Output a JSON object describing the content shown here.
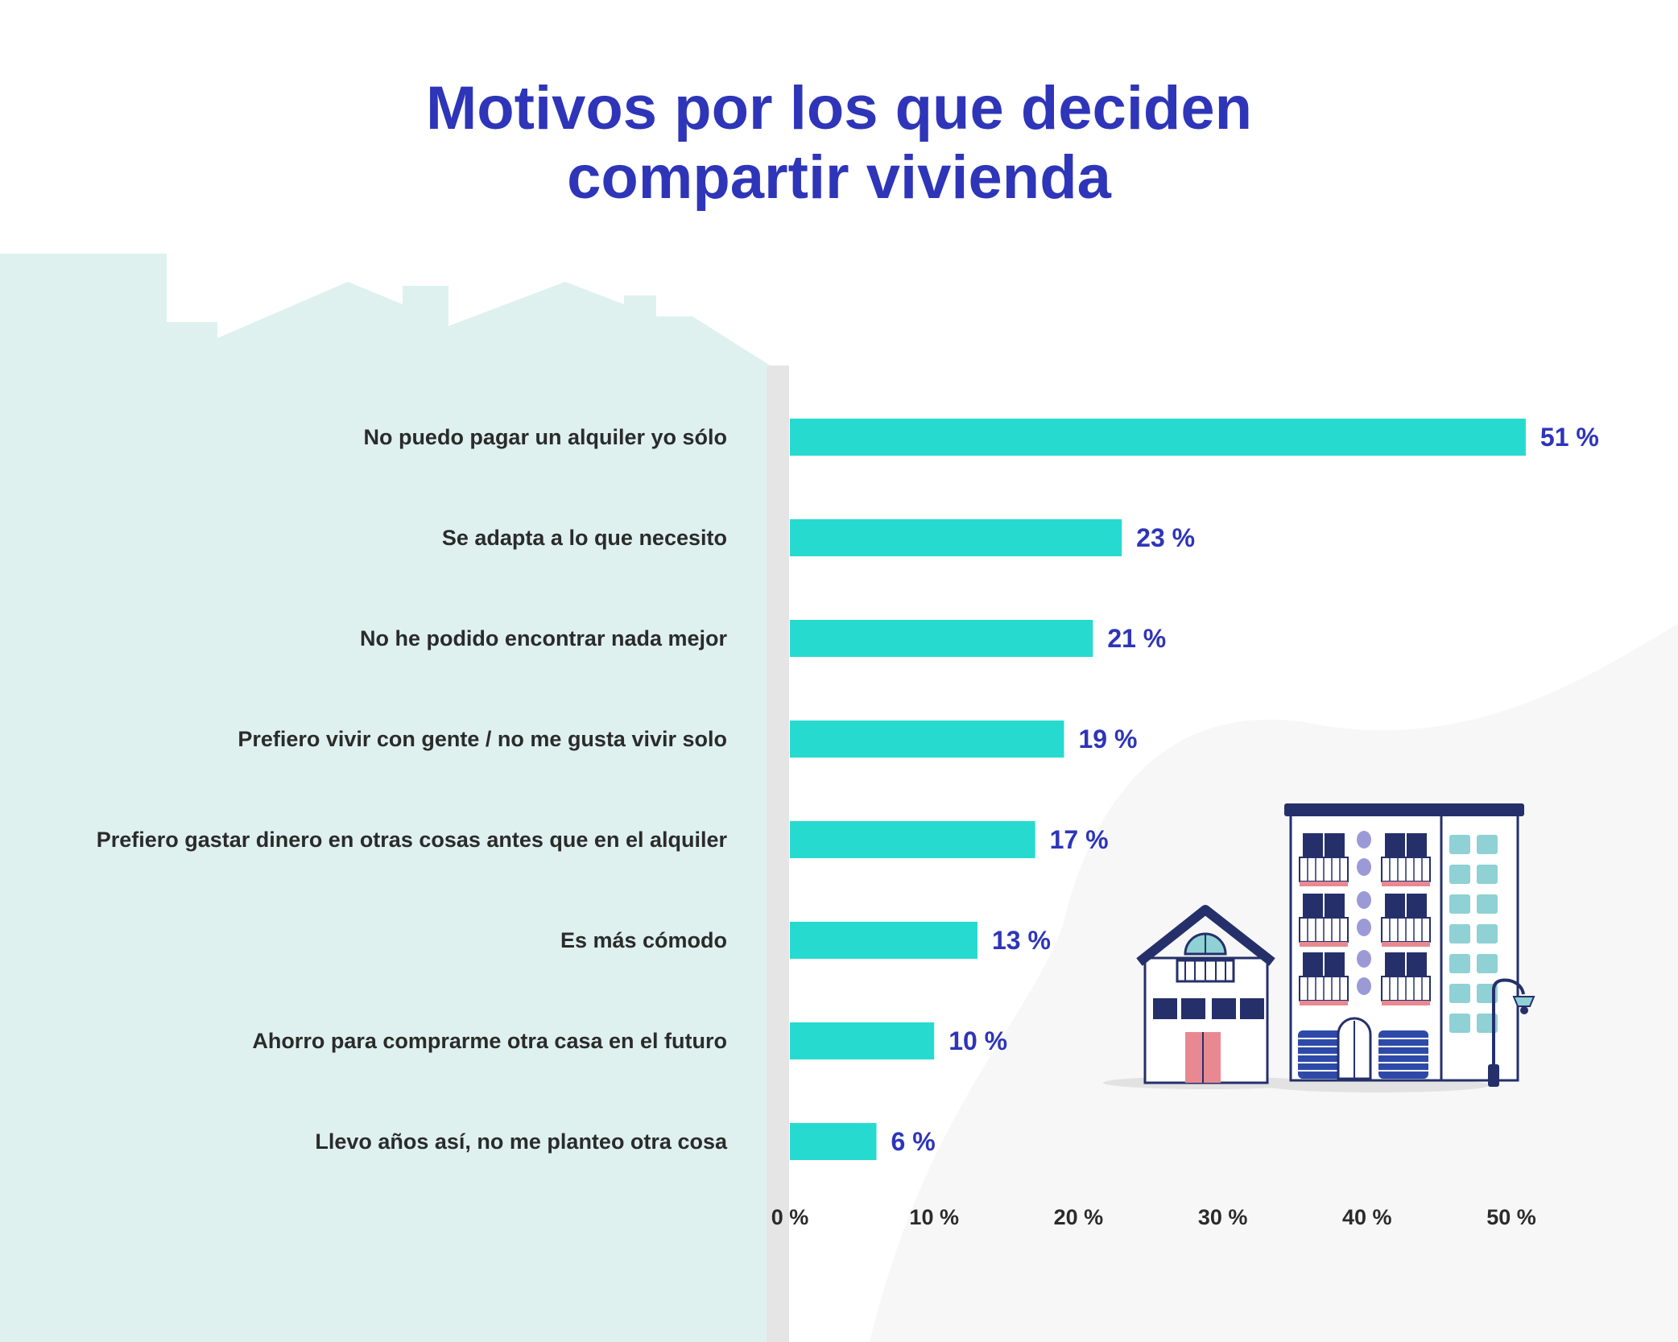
{
  "colors": {
    "title": "#2e35b8",
    "bar": "#26dacf",
    "value_label": "#2e35b8",
    "category_label": "#2b2b2b",
    "skyline": "#def1ef",
    "axis_band": "#e5e5e5",
    "blob": "#f7f7f7"
  },
  "chart_data": {
    "type": "bar",
    "orientation": "horizontal",
    "title_lines": [
      "Motivos por los que deciden",
      "compartir vivienda"
    ],
    "categories": [
      "No puedo pagar un alquiler yo sólo",
      "Se adapta a lo que necesito",
      "No he podido encontrar nada mejor",
      "Prefiero vivir con gente / no me gusta vivir solo",
      "Prefiero gastar dinero en otras cosas antes que en el alquiler",
      "Es más cómodo",
      "Ahorro para comprarme otra casa en el futuro",
      "Llevo años así, no me planteo otra cosa"
    ],
    "values": [
      51,
      23,
      21,
      19,
      17,
      13,
      10,
      6
    ],
    "value_labels": [
      "51 %",
      "23 %",
      "21 %",
      "19 %",
      "17 %",
      "13 %",
      "10 %",
      "6 %"
    ],
    "xlim": [
      0,
      50
    ],
    "ticks": [
      0,
      10,
      20,
      30,
      40,
      50
    ],
    "tick_labels": [
      "0 %",
      "10 %",
      "20 %",
      "30 %",
      "40 %",
      "50 %"
    ],
    "xlabel": "",
    "ylabel": "",
    "grid": false
  }
}
